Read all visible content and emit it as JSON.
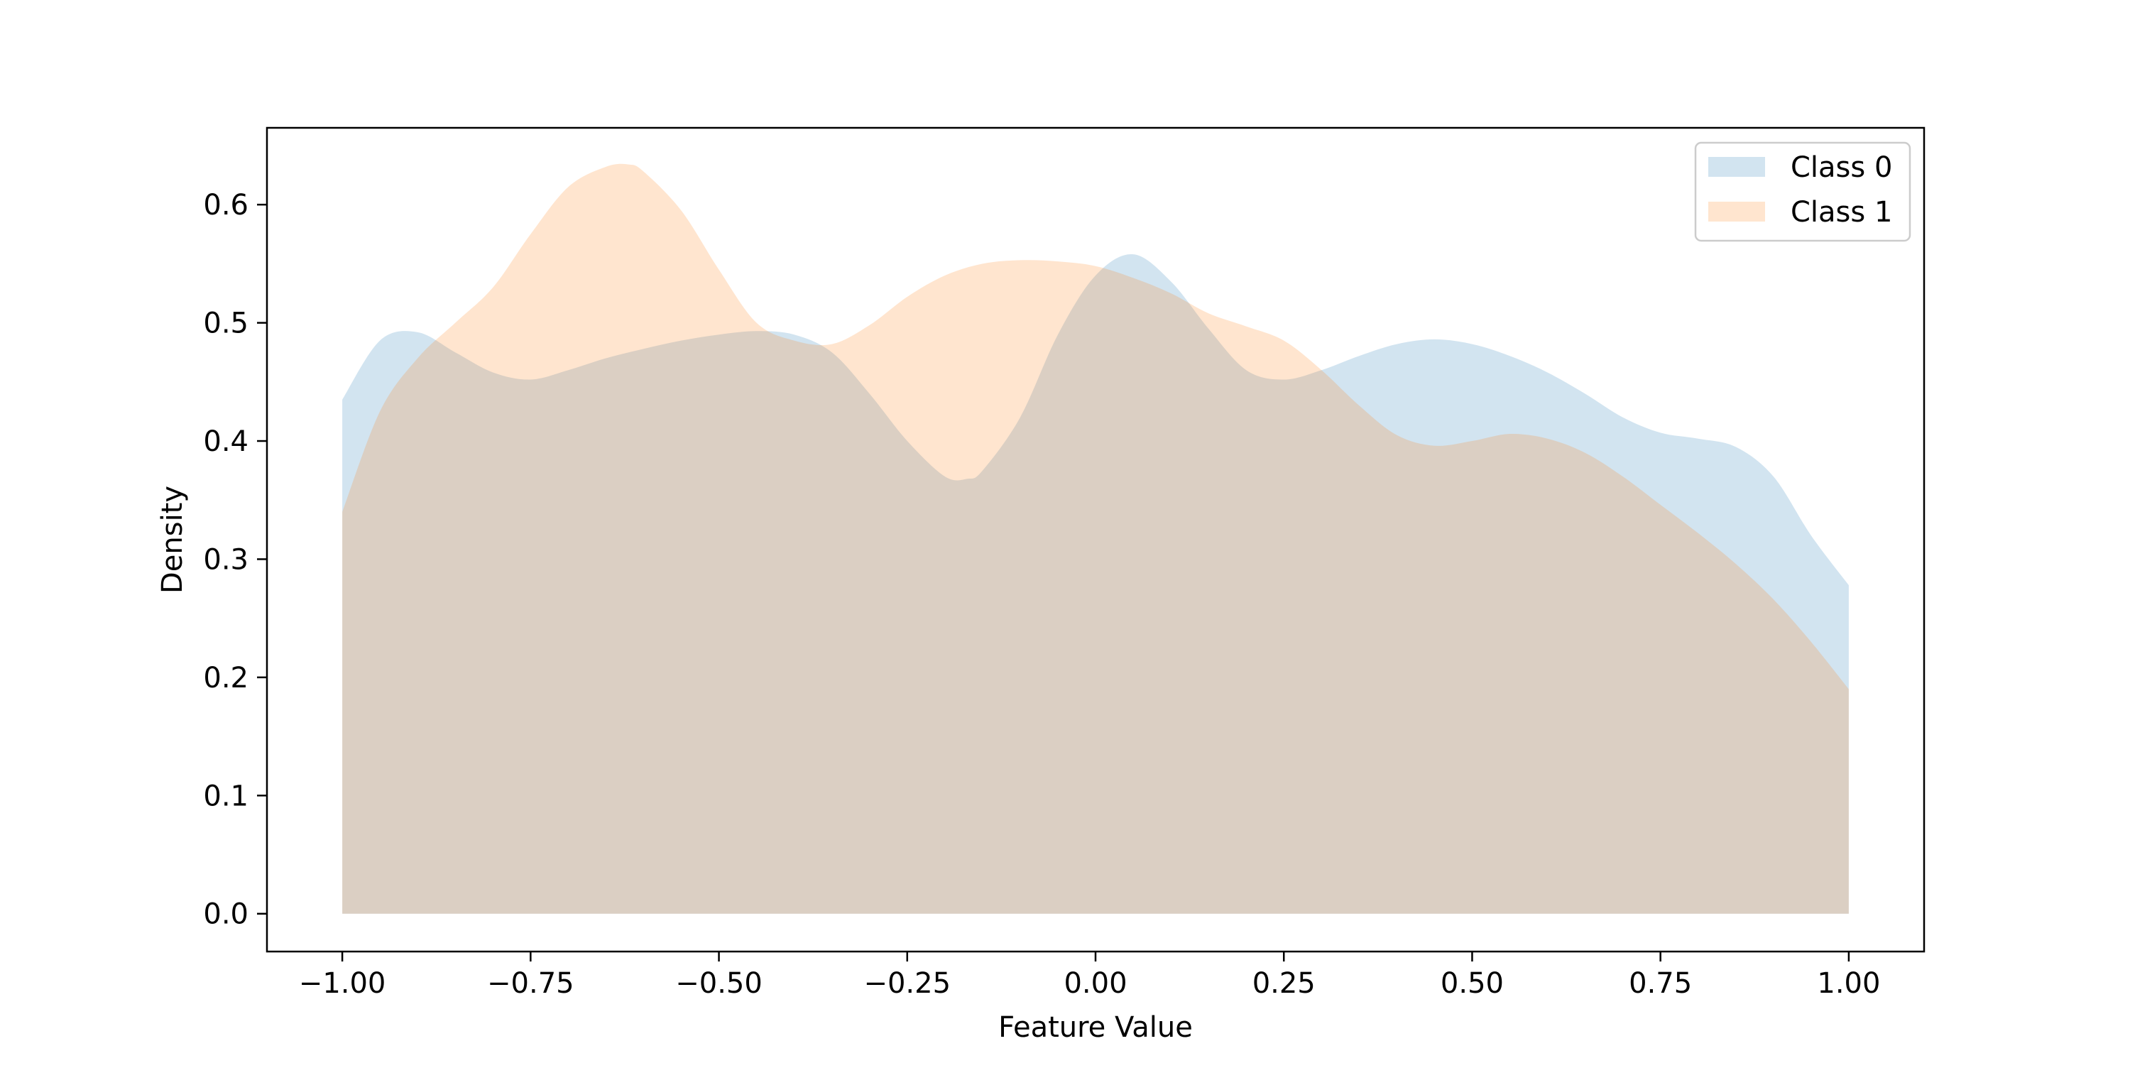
{
  "chart_data": {
    "type": "area",
    "title": "",
    "xlabel": "Feature Value",
    "ylabel": "Density",
    "xlim": [
      -1.1,
      1.1
    ],
    "ylim": [
      -0.032,
      0.665
    ],
    "xticks": [
      -1.0,
      -0.75,
      -0.5,
      -0.25,
      0.0,
      0.25,
      0.5,
      0.75,
      1.0
    ],
    "xtick_labels": [
      "−1.00",
      "−0.75",
      "−0.50",
      "−0.25",
      "0.00",
      "0.25",
      "0.50",
      "0.75",
      "1.00"
    ],
    "yticks": [
      0.0,
      0.1,
      0.2,
      0.3,
      0.4,
      0.5,
      0.6
    ],
    "ytick_labels": [
      "0.0",
      "0.1",
      "0.2",
      "0.3",
      "0.4",
      "0.5",
      "0.6"
    ],
    "grid": false,
    "legend_position": "top-right",
    "series": [
      {
        "name": "Class 0",
        "color": "#1f77b4",
        "opacity": 0.2,
        "x": [
          -1.0,
          -0.95,
          -0.9,
          -0.85,
          -0.8,
          -0.75,
          -0.7,
          -0.65,
          -0.6,
          -0.55,
          -0.5,
          -0.45,
          -0.4,
          -0.35,
          -0.3,
          -0.25,
          -0.2,
          -0.17,
          -0.15,
          -0.1,
          -0.05,
          0.0,
          0.05,
          0.1,
          0.15,
          0.2,
          0.25,
          0.3,
          0.35,
          0.4,
          0.45,
          0.5,
          0.55,
          0.6,
          0.65,
          0.7,
          0.75,
          0.8,
          0.85,
          0.9,
          0.95,
          1.0
        ],
        "y": [
          0.435,
          0.485,
          0.492,
          0.475,
          0.458,
          0.452,
          0.46,
          0.47,
          0.478,
          0.485,
          0.49,
          0.493,
          0.49,
          0.475,
          0.44,
          0.4,
          0.37,
          0.368,
          0.375,
          0.42,
          0.49,
          0.54,
          0.558,
          0.535,
          0.495,
          0.46,
          0.452,
          0.46,
          0.472,
          0.482,
          0.486,
          0.482,
          0.472,
          0.458,
          0.44,
          0.42,
          0.407,
          0.402,
          0.395,
          0.37,
          0.32,
          0.278
        ]
      },
      {
        "name": "Class 1",
        "color": "#ff7f0e",
        "opacity": 0.2,
        "x": [
          -1.0,
          -0.95,
          -0.9,
          -0.85,
          -0.8,
          -0.75,
          -0.7,
          -0.65,
          -0.62,
          -0.6,
          -0.55,
          -0.5,
          -0.45,
          -0.4,
          -0.35,
          -0.3,
          -0.25,
          -0.2,
          -0.15,
          -0.1,
          -0.05,
          0.0,
          0.05,
          0.1,
          0.15,
          0.2,
          0.25,
          0.3,
          0.35,
          0.4,
          0.45,
          0.5,
          0.55,
          0.6,
          0.65,
          0.7,
          0.75,
          0.8,
          0.85,
          0.9,
          0.95,
          1.0
        ],
        "y": [
          0.34,
          0.425,
          0.47,
          0.5,
          0.53,
          0.575,
          0.615,
          0.632,
          0.634,
          0.628,
          0.595,
          0.545,
          0.5,
          0.485,
          0.482,
          0.498,
          0.522,
          0.54,
          0.55,
          0.553,
          0.552,
          0.548,
          0.538,
          0.525,
          0.508,
          0.497,
          0.485,
          0.46,
          0.43,
          0.405,
          0.396,
          0.4,
          0.406,
          0.402,
          0.39,
          0.37,
          0.346,
          0.322,
          0.296,
          0.266,
          0.23,
          0.19
        ]
      }
    ]
  }
}
